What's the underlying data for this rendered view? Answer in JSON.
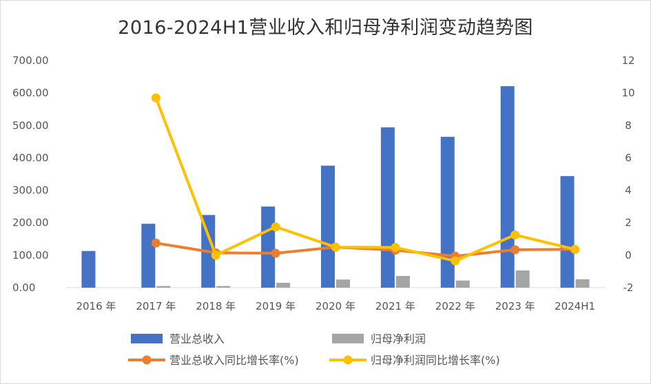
{
  "chart_data": {
    "type": "bar",
    "title": "2016-2024H1营业收入和归母净利润变动趋势图",
    "categories": [
      "2016 年",
      "2017 年",
      "2018 年",
      "2019 年",
      "2020 年",
      "2021 年",
      "2022 年",
      "2023 年",
      "2024H1"
    ],
    "y_left": {
      "range": [
        0,
        700
      ],
      "ticks": [
        "0.00",
        "100.00",
        "200.00",
        "300.00",
        "400.00",
        "500.00",
        "600.00",
        "700.00"
      ]
    },
    "y_right": {
      "range": [
        -2,
        12
      ],
      "ticks": [
        "-2",
        "0",
        "2",
        "4",
        "6",
        "8",
        "10",
        "12"
      ]
    },
    "grid": false,
    "legend_position": "bottom",
    "series": [
      {
        "name": "营业总收入",
        "kind": "bar",
        "axis": "left",
        "color": "#4472c4",
        "values": [
          113,
          197,
          224,
          250,
          376,
          494,
          465,
          621,
          344
        ]
      },
      {
        "name": "归母净利润",
        "kind": "bar",
        "axis": "left",
        "color": "#a5a5a5",
        "values": [
          0,
          5,
          5,
          15,
          25,
          36,
          22,
          53,
          26
        ]
      },
      {
        "name": "营业总收入同比增长率(%)",
        "kind": "line",
        "axis": "right",
        "color": "#ed7d31",
        "values": [
          null,
          0.75,
          0.15,
          0.12,
          0.5,
          0.31,
          -0.06,
          0.34,
          0.36
        ]
      },
      {
        "name": "归母净利润同比增长率(%)",
        "kind": "line",
        "axis": "right",
        "color": "#ffc000",
        "values": [
          null,
          9.7,
          0.0,
          1.75,
          0.5,
          0.48,
          -0.35,
          1.25,
          0.36
        ]
      }
    ]
  }
}
